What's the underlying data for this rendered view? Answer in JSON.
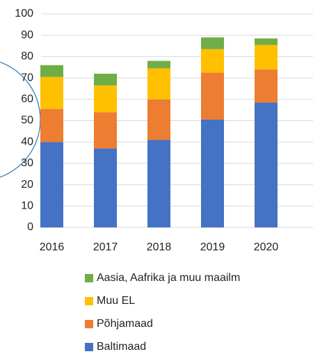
{
  "chart_data": {
    "type": "stacked_bar",
    "categories": [
      "2016",
      "2017",
      "2018",
      "2019",
      "2020"
    ],
    "series": [
      {
        "name": "Baltimaad",
        "color": "#4472c4",
        "values": [
          40,
          37,
          41,
          50.5,
          58.5
        ]
      },
      {
        "name": "Põhjamaad",
        "color": "#ed7d31",
        "values": [
          15.5,
          17,
          19,
          22,
          15.5
        ]
      },
      {
        "name": "Muu EL",
        "color": "#ffc000",
        "values": [
          15,
          12.5,
          14.5,
          11,
          11.5
        ]
      },
      {
        "name": "Aasia, Aafrika ja muu maailm",
        "color": "#70ad47",
        "values": [
          5.5,
          5.5,
          3.5,
          5.5,
          3
        ]
      }
    ],
    "ylim": [
      0,
      100
    ],
    "yticks": [
      0,
      10,
      20,
      30,
      40,
      50,
      60,
      70,
      80,
      90,
      100
    ],
    "grid": true
  }
}
